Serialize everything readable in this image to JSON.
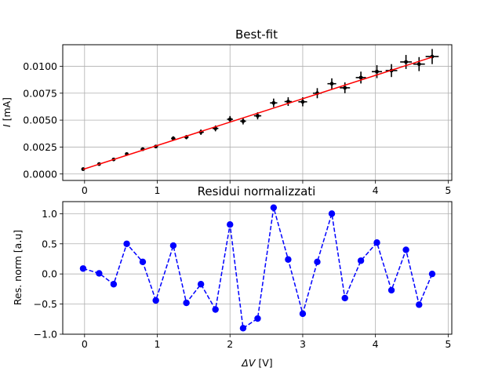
{
  "chart_data": [
    {
      "type": "scatter",
      "title": "Best-fit",
      "xlabel": "",
      "ylabel": "I [mA]",
      "ylabel_symbol": "I",
      "ylabel_unit": " [mA]",
      "xlim": [
        -0.3,
        5.05
      ],
      "ylim": [
        -0.0006,
        0.012
      ],
      "xticks": [
        0,
        1,
        2,
        3,
        4,
        5
      ],
      "yticks": [
        0.0,
        0.0025,
        0.005,
        0.0075,
        0.01
      ],
      "ytick_labels": [
        "0.0000",
        "0.0025",
        "0.0050",
        "0.0075",
        "0.0100"
      ],
      "grid": true,
      "series": [
        {
          "kind": "errorbar",
          "color": "#000000",
          "x": [
            -0.02,
            0.2,
            0.4,
            0.58,
            0.8,
            0.98,
            1.22,
            1.4,
            1.6,
            1.8,
            2.0,
            2.18,
            2.38,
            2.6,
            2.8,
            3.0,
            3.2,
            3.4,
            3.58,
            3.8,
            4.02,
            4.22,
            4.42,
            4.6,
            4.78
          ],
          "y": [
            0.00045,
            0.00092,
            0.00135,
            0.00185,
            0.0023,
            0.00255,
            0.0033,
            0.00342,
            0.00388,
            0.00423,
            0.00508,
            0.0049,
            0.0054,
            0.0066,
            0.00672,
            0.0067,
            0.0075,
            0.00838,
            0.008,
            0.00895,
            0.0095,
            0.0096,
            0.0104,
            0.0102,
            0.0109
          ],
          "yerr": [
            0.0001,
            0.0001,
            0.00012,
            0.00013,
            0.00015,
            0.00016,
            0.0002,
            0.0002,
            0.00025,
            0.00027,
            0.0003,
            0.0003,
            0.00033,
            0.0004,
            0.0004,
            0.00042,
            0.00047,
            0.0005,
            0.0005,
            0.00055,
            0.0006,
            0.0006,
            0.00065,
            0.00065,
            0.0007
          ],
          "xerr": [
            0.02,
            0.02,
            0.02,
            0.02,
            0.03,
            0.03,
            0.03,
            0.03,
            0.04,
            0.04,
            0.04,
            0.04,
            0.05,
            0.05,
            0.05,
            0.06,
            0.06,
            0.06,
            0.07,
            0.07,
            0.07,
            0.08,
            0.08,
            0.08,
            0.09
          ]
        },
        {
          "kind": "line",
          "color": "#ff0000",
          "x": [
            -0.02,
            4.78
          ],
          "y": [
            0.00043,
            0.01085
          ]
        }
      ]
    },
    {
      "type": "line",
      "title": "Residui normalizzati",
      "xlabel": "ΔV [V]",
      "xlabel_symbol": "ΔV",
      "xlabel_unit": " [V]",
      "ylabel": "Res. norm [a.u]",
      "xlim": [
        -0.3,
        5.05
      ],
      "ylim": [
        -1.0,
        1.2
      ],
      "xticks": [
        0,
        1,
        2,
        3,
        4,
        5
      ],
      "yticks": [
        -1.0,
        -0.5,
        0.0,
        0.5,
        1.0
      ],
      "ytick_labels": [
        "−1.0",
        "−0.5",
        "0.0",
        "0.5",
        "1.0"
      ],
      "grid": true,
      "series": [
        {
          "kind": "dashed-line-markers",
          "color": "#0000ff",
          "x": [
            -0.02,
            0.2,
            0.4,
            0.58,
            0.8,
            0.98,
            1.22,
            1.4,
            1.6,
            1.8,
            2.0,
            2.18,
            2.38,
            2.6,
            2.8,
            3.0,
            3.2,
            3.4,
            3.58,
            3.8,
            4.02,
            4.22,
            4.42,
            4.6,
            4.78
          ],
          "y": [
            0.09,
            0.01,
            -0.17,
            0.5,
            0.2,
            -0.44,
            0.47,
            -0.48,
            -0.17,
            -0.59,
            0.82,
            -0.9,
            -0.74,
            1.1,
            0.24,
            -0.66,
            0.2,
            1.0,
            -0.4,
            0.22,
            0.52,
            -0.27,
            0.4,
            -0.51,
            0.0
          ]
        }
      ]
    }
  ]
}
